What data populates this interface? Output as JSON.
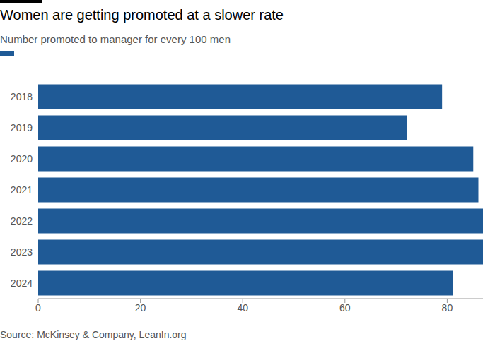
{
  "chart_data": {
    "type": "bar",
    "orientation": "horizontal",
    "title": "Women are getting promoted at a slower rate",
    "subtitle": "Number promoted to manager for every 100 men",
    "source": "Source: McKinsey & Company, LeanIn.org",
    "categories": [
      "2018",
      "2019",
      "2020",
      "2021",
      "2022",
      "2023",
      "2024"
    ],
    "values": [
      79,
      72.1,
      85.1,
      86.1,
      87,
      87,
      81.1
    ],
    "color": "#1f5a96",
    "xlim": [
      0,
      87
    ],
    "xticks": [
      0,
      20,
      40,
      60,
      80
    ],
    "grid": false
  }
}
